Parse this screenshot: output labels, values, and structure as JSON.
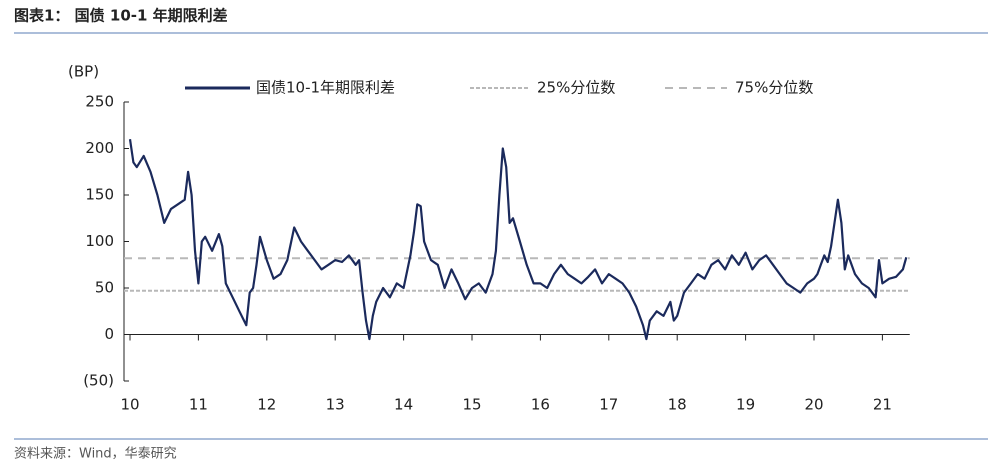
{
  "title": "图表1： 国债 10-1 年期限利差",
  "source": "资料来源：Wind，华泰研究",
  "chart_data": {
    "type": "line",
    "y_unit": "(BP)",
    "xlim": [
      10,
      21.4
    ],
    "xticks": [
      10,
      11,
      12,
      13,
      14,
      15,
      16,
      17,
      18,
      19,
      20,
      21
    ],
    "ylim": [
      -50,
      250
    ],
    "yticks": [
      {
        "value": -50,
        "label": "(50)"
      },
      0,
      50,
      100,
      150,
      200,
      250
    ],
    "x": [
      10.0,
      10.05,
      10.1,
      10.2,
      10.3,
      10.4,
      10.5,
      10.6,
      10.7,
      10.8,
      10.85,
      10.9,
      10.95,
      11.0,
      11.05,
      11.1,
      11.2,
      11.3,
      11.35,
      11.4,
      11.5,
      11.6,
      11.7,
      11.75,
      11.8,
      11.85,
      11.9,
      12.0,
      12.1,
      12.2,
      12.3,
      12.4,
      12.5,
      12.6,
      12.7,
      12.8,
      12.9,
      13.0,
      13.1,
      13.2,
      13.3,
      13.35,
      13.4,
      13.45,
      13.5,
      13.55,
      13.6,
      13.7,
      13.8,
      13.9,
      14.0,
      14.1,
      14.15,
      14.2,
      14.25,
      14.3,
      14.35,
      14.4,
      14.5,
      14.6,
      14.7,
      14.8,
      14.9,
      15.0,
      15.1,
      15.2,
      15.3,
      15.35,
      15.4,
      15.45,
      15.5,
      15.55,
      15.6,
      15.7,
      15.8,
      15.9,
      16.0,
      16.1,
      16.2,
      16.3,
      16.4,
      16.5,
      16.6,
      16.7,
      16.8,
      16.9,
      17.0,
      17.1,
      17.2,
      17.3,
      17.4,
      17.5,
      17.55,
      17.6,
      17.7,
      17.8,
      17.9,
      17.95,
      18.0,
      18.1,
      18.2,
      18.3,
      18.4,
      18.5,
      18.6,
      18.7,
      18.8,
      18.9,
      19.0,
      19.1,
      19.2,
      19.3,
      19.4,
      19.5,
      19.6,
      19.7,
      19.8,
      19.9,
      20.0,
      20.05,
      20.1,
      20.15,
      20.2,
      20.25,
      20.3,
      20.35,
      20.4,
      20.45,
      20.5,
      20.6,
      20.7,
      20.8,
      20.9,
      20.95,
      21.0,
      21.1,
      21.2,
      21.3,
      21.35
    ],
    "series": [
      {
        "name": "国债10-1年期限利差",
        "color": "#1b2a5c",
        "values": [
          210,
          185,
          180,
          192,
          175,
          150,
          120,
          135,
          140,
          145,
          175,
          150,
          90,
          55,
          100,
          105,
          90,
          108,
          95,
          55,
          40,
          25,
          10,
          45,
          50,
          75,
          105,
          80,
          60,
          65,
          80,
          115,
          100,
          90,
          80,
          70,
          75,
          80,
          78,
          85,
          75,
          80,
          45,
          15,
          -5,
          20,
          35,
          50,
          40,
          55,
          50,
          85,
          110,
          140,
          138,
          100,
          90,
          80,
          75,
          50,
          70,
          55,
          38,
          50,
          55,
          45,
          65,
          90,
          150,
          200,
          180,
          120,
          125,
          100,
          75,
          55,
          55,
          50,
          65,
          75,
          65,
          60,
          55,
          62,
          70,
          55,
          65,
          60,
          55,
          45,
          30,
          10,
          -5,
          15,
          25,
          20,
          35,
          15,
          20,
          45,
          55,
          65,
          60,
          75,
          80,
          70,
          85,
          75,
          88,
          70,
          80,
          85,
          75,
          65,
          55,
          50,
          45,
          55,
          60,
          65,
          75,
          85,
          78,
          95,
          120,
          145,
          120,
          70,
          85,
          65,
          55,
          50,
          40,
          80,
          55,
          60,
          62,
          70,
          83
        ]
      }
    ],
    "hlines": [
      {
        "name": "25%分位数",
        "value": 47,
        "color": "#b8b8b8"
      },
      {
        "name": "75%分位数",
        "value": 82,
        "color": "#b8b8b8"
      }
    ]
  }
}
